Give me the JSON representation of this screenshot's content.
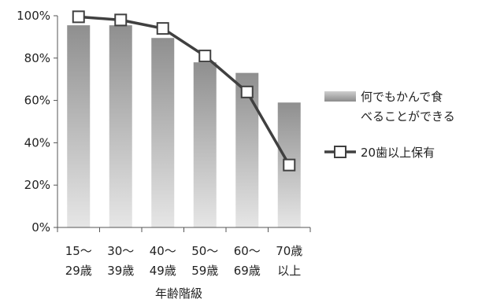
{
  "chart_data": {
    "type": "bar",
    "categories": [
      [
        "15〜",
        "29歳"
      ],
      [
        "30〜",
        "39歳"
      ],
      [
        "40〜",
        "49歳"
      ],
      [
        "50〜",
        "59歳"
      ],
      [
        "60〜",
        "69歳"
      ],
      [
        "70歳",
        "以上"
      ]
    ],
    "series": [
      {
        "name_lines": [
          "何でもかんで食",
          "べることができる"
        ],
        "mark": "bar",
        "values": [
          95.5,
          95.5,
          89.5,
          78,
          73,
          59
        ]
      },
      {
        "name": "20歯以上保有",
        "mark": "line",
        "values": [
          99.5,
          98,
          94,
          81,
          64,
          29.5
        ]
      }
    ],
    "xlabel": "年齢階級",
    "ylabel": "",
    "ylim": [
      0,
      100
    ],
    "yticks": [
      "0%",
      "20%",
      "40%",
      "60%",
      "80%",
      "100%"
    ],
    "ytick_values": [
      0,
      20,
      40,
      60,
      80,
      100
    ],
    "legend_position": "right",
    "colors": {
      "bar_top": "#8f8f8f",
      "bar_bottom": "#e6e6e6",
      "line": "#404040",
      "marker_fill": "#ffffff",
      "axis": "#555555",
      "legend_swatch_top": "#cfcfcf",
      "legend_swatch_bottom": "#8c8c8c"
    }
  }
}
